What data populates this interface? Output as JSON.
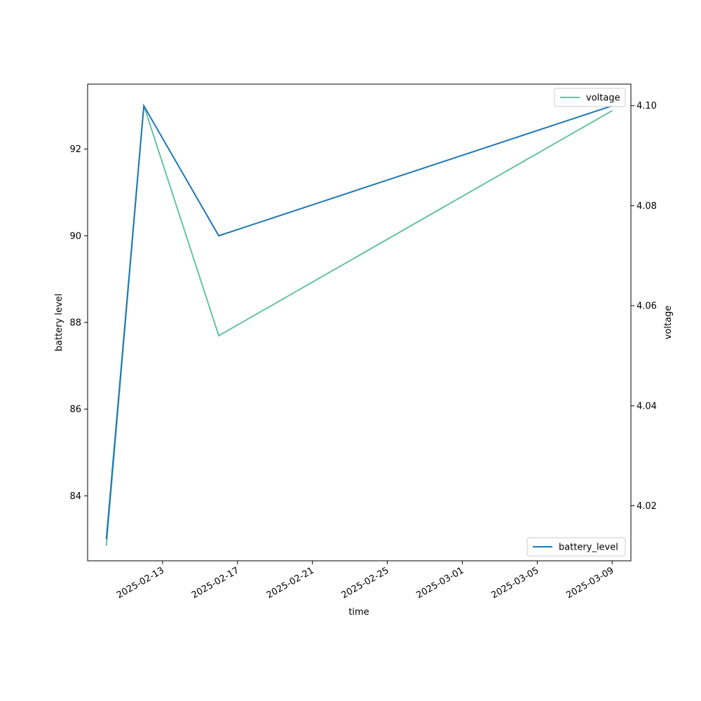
{
  "chart_data": {
    "type": "line",
    "title": "",
    "xlabel": "time",
    "x": [
      "2025-02-10",
      "2025-02-12",
      "2025-02-16",
      "2025-03-09"
    ],
    "xlim": [
      "2025-02-09",
      "2025-03-10"
    ],
    "x_ticks": [
      "2025-02-13",
      "2025-02-17",
      "2025-02-21",
      "2025-02-25",
      "2025-03-01",
      "2025-03-05",
      "2025-03-09"
    ],
    "axes": {
      "left": {
        "label": "battery level",
        "ylim": [
          82.5,
          93.5
        ],
        "ticks": [
          "84",
          "86",
          "88",
          "90",
          "92"
        ]
      },
      "right": {
        "label": "voltage",
        "ylim": [
          4.009,
          4.1043
        ],
        "ticks": [
          "4.02",
          "4.04",
          "4.06",
          "4.08",
          "4.10"
        ]
      }
    },
    "series": [
      {
        "name": "battery_level",
        "axis": "left",
        "color": "#1f77b4",
        "values": [
          83,
          93,
          90,
          93
        ]
      },
      {
        "name": "voltage",
        "axis": "right",
        "color": "#66c2a5",
        "values": [
          4.012,
          4.1,
          4.054,
          4.099
        ]
      }
    ],
    "legend": {
      "battery_level": "bottom-right",
      "voltage": "top-right"
    },
    "grid": false
  }
}
